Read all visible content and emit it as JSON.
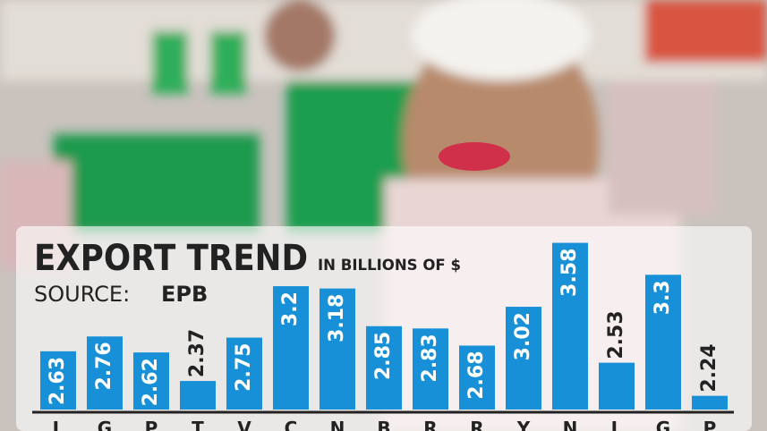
{
  "chart_data": {
    "type": "bar",
    "title": "EXPORT TREND",
    "subtitle": "IN BILLIONS OF $",
    "source_label": "SOURCE:",
    "source": "EPB",
    "categories": [
      "L",
      "G",
      "P",
      "T",
      "V",
      "C",
      "N",
      "B",
      "R",
      "R",
      "Y",
      "N",
      "L",
      "G",
      "P"
    ],
    "values": [
      2.63,
      2.76,
      2.62,
      2.37,
      2.75,
      3.2,
      3.18,
      2.85,
      2.83,
      2.68,
      3.02,
      3.58,
      2.53,
      3.3,
      2.24
    ],
    "color": "#1790d8",
    "ylim": [
      2.12,
      3.6
    ]
  }
}
